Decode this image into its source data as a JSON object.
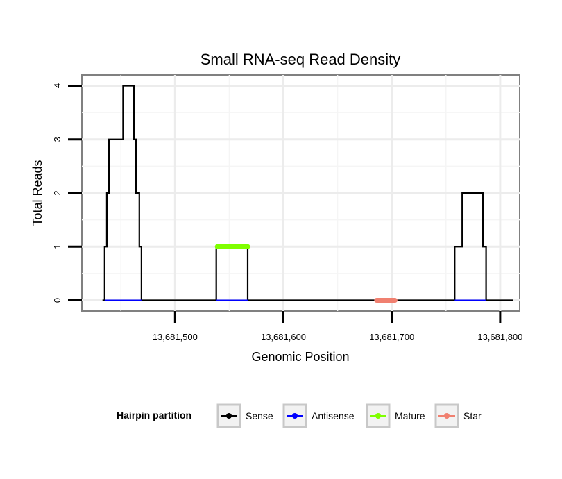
{
  "chart_data": {
    "type": "line",
    "title": "Small RNA-seq Read Density",
    "xlabel": "Genomic Position",
    "ylabel": "Total Reads",
    "xlim": [
      13681414,
      13681818
    ],
    "ylim": [
      -0.2,
      4.2
    ],
    "x_ticks": [
      13681500,
      13681600,
      13681700,
      13681800
    ],
    "x_tick_labels": [
      "13,681,500",
      "13,681,600",
      "13,681,700",
      "13,681,800"
    ],
    "y_ticks": [
      0,
      1,
      2,
      3,
      4
    ],
    "y_tick_labels": [
      "0",
      "1",
      "2",
      "3",
      "4"
    ],
    "grid": true,
    "legend": {
      "title": "Hairpin partition",
      "position": "bottom",
      "entries": [
        {
          "label": "Sense",
          "color": "#000000"
        },
        {
          "label": "Antisense",
          "color": "#0000ff"
        },
        {
          "label": "Mature",
          "color": "#7fff00"
        },
        {
          "label": "Star",
          "color": "#f08070"
        }
      ]
    },
    "series": [
      {
        "name": "Sense",
        "color": "#000000",
        "x": [
          13681433,
          13681435,
          13681435,
          13681437,
          13681437,
          13681439,
          13681439,
          13681443,
          13681443,
          13681452,
          13681452,
          13681462,
          13681462,
          13681464,
          13681464,
          13681467,
          13681467,
          13681469,
          13681469,
          13681538,
          13681538,
          13681567,
          13681567,
          13681758,
          13681758,
          13681762,
          13681762,
          13681765,
          13681765,
          13681784,
          13681784,
          13681787,
          13681787,
          13681812
        ],
        "values": [
          0,
          0,
          1,
          1,
          2,
          2,
          3,
          3,
          3,
          3,
          4,
          4,
          3,
          3,
          2,
          2,
          1,
          1,
          0,
          0,
          1,
          1,
          0,
          0,
          1,
          1,
          1,
          1,
          2,
          2,
          1,
          1,
          0,
          0
        ]
      },
      {
        "name": "Antisense",
        "color": "#0000ff",
        "segments": [
          [
            13681435,
            13681469
          ],
          [
            13681538,
            13681567
          ],
          [
            13681758,
            13681787
          ]
        ],
        "value": 0
      },
      {
        "name": "Mature",
        "color": "#7fff00",
        "segments": [
          [
            13681539,
            13681567
          ]
        ],
        "value": 1
      },
      {
        "name": "Star",
        "color": "#f08070",
        "segments": [
          [
            13681686,
            13681703
          ]
        ],
        "value": 0
      }
    ]
  }
}
